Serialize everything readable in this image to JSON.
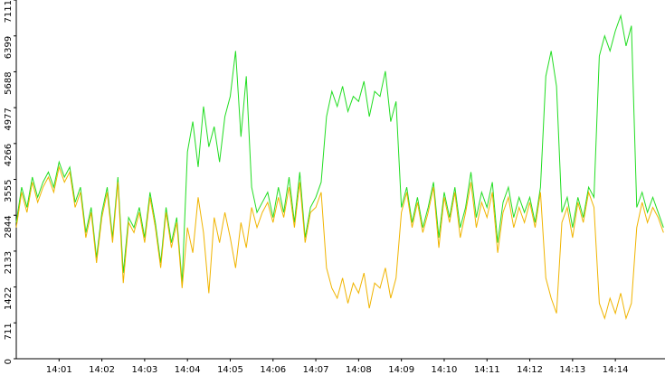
{
  "chart_data": {
    "type": "line",
    "x": [
      840,
      840.125,
      840.25,
      840.375,
      840.5,
      840.625,
      840.75,
      840.875,
      841,
      841.125,
      841.25,
      841.375,
      841.5,
      841.625,
      841.75,
      841.875,
      842,
      842.125,
      842.25,
      842.375,
      842.5,
      842.625,
      842.75,
      842.875,
      843,
      843.125,
      843.25,
      843.375,
      843.5,
      843.625,
      843.75,
      843.875,
      844,
      844.125,
      844.25,
      844.375,
      844.5,
      844.625,
      844.75,
      844.875,
      845,
      845.125,
      845.25,
      845.375,
      845.5,
      845.625,
      845.75,
      845.875,
      846,
      846.125,
      846.25,
      846.375,
      846.5,
      846.625,
      846.75,
      846.875,
      847,
      847.125,
      847.25,
      847.375,
      847.5,
      847.625,
      847.75,
      847.875,
      848,
      848.125,
      848.25,
      848.375,
      848.5,
      848.625,
      848.75,
      848.875,
      849,
      849.125,
      849.25,
      849.375,
      849.5,
      849.625,
      849.75,
      849.875,
      850,
      850.125,
      850.25,
      850.375,
      850.5,
      850.625,
      850.75,
      850.875,
      851,
      851.125,
      851.25,
      851.375,
      851.5,
      851.625,
      851.75,
      851.875,
      852,
      852.125,
      852.25,
      852.375,
      852.5,
      852.625,
      852.75,
      852.875,
      853,
      853.125,
      853.25,
      853.375,
      853.5,
      853.625,
      853.75,
      853.875,
      854,
      854.125,
      854.25,
      854.375,
      854.5,
      854.625,
      854.75,
      854.875,
      855,
      855.125
    ],
    "series": [
      {
        "color": "#22dd22",
        "values": [
          2700,
          3400,
          3000,
          3600,
          3200,
          3500,
          3700,
          3400,
          3900,
          3600,
          3800,
          3100,
          3400,
          2500,
          3000,
          2000,
          2900,
          3400,
          2400,
          3600,
          1700,
          2800,
          2600,
          3000,
          2400,
          3300,
          2700,
          1900,
          3000,
          2300,
          2800,
          1500,
          4100,
          4700,
          3800,
          5000,
          4200,
          4600,
          3900,
          4800,
          5200,
          6100,
          4400,
          5600,
          3400,
          2900,
          3100,
          3300,
          2800,
          3400,
          2900,
          3600,
          2700,
          3700,
          2400,
          3000,
          3200,
          3500,
          4800,
          5300,
          5000,
          5400,
          4900,
          5200,
          5100,
          5500,
          4800,
          5300,
          5200,
          5700,
          4700,
          5100,
          3000,
          3400,
          2700,
          3200,
          2600,
          3000,
          3500,
          2400,
          3300,
          2800,
          3400,
          2600,
          3000,
          3700,
          2800,
          3300,
          3000,
          3500,
          2300,
          3100,
          3400,
          2800,
          3200,
          2900,
          3200,
          2700,
          3400,
          5600,
          6100,
          5400,
          2900,
          3200,
          2600,
          3200,
          2800,
          3400,
          3200,
          6000,
          6400,
          6100,
          6500,
          6800,
          6200,
          6600,
          3000,
          3300,
          2900,
          3200,
          2900,
          2600
        ]
      },
      {
        "color": "#f0b400",
        "values": [
          2600,
          3300,
          2900,
          3500,
          3100,
          3400,
          3600,
          3300,
          3800,
          3500,
          3700,
          3000,
          3300,
          2400,
          2900,
          1900,
          2800,
          3300,
          2300,
          3500,
          1500,
          2700,
          2500,
          2900,
          2300,
          3200,
          2600,
          1800,
          2900,
          2200,
          2700,
          1400,
          2600,
          2100,
          3200,
          2500,
          1300,
          2800,
          2300,
          2900,
          2400,
          1800,
          2700,
          2200,
          3000,
          2600,
          2900,
          3100,
          2700,
          3200,
          2800,
          3400,
          2600,
          3500,
          2300,
          2900,
          3000,
          3300,
          1800,
          1400,
          1200,
          1600,
          1100,
          1500,
          1300,
          1700,
          1000,
          1500,
          1400,
          1800,
          1200,
          1600,
          2900,
          3300,
          2600,
          3100,
          2500,
          2900,
          3400,
          2200,
          3200,
          2700,
          3300,
          2400,
          2900,
          3500,
          2600,
          3100,
          2800,
          3300,
          2100,
          2900,
          3200,
          2600,
          3000,
          2700,
          3100,
          2600,
          3300,
          1600,
          1200,
          900,
          2700,
          3000,
          2400,
          3100,
          2700,
          3300,
          3000,
          1100,
          800,
          1200,
          900,
          1300,
          800,
          1100,
          2600,
          3100,
          2700,
          3000,
          2800,
          2500
        ]
      }
    ],
    "xlim": [
      840,
      855.16
    ],
    "xticks": [
      {
        "value": 841,
        "label": "14:01"
      },
      {
        "value": 842,
        "label": "14:02"
      },
      {
        "value": 843,
        "label": "14:03"
      },
      {
        "value": 844,
        "label": "14:04"
      },
      {
        "value": 845,
        "label": "14:05"
      },
      {
        "value": 846,
        "label": "14:06"
      },
      {
        "value": 847,
        "label": "14:07"
      },
      {
        "value": 848,
        "label": "14:08"
      },
      {
        "value": 849,
        "label": "14:09"
      },
      {
        "value": 850,
        "label": "14:10"
      },
      {
        "value": 851,
        "label": "14:11"
      },
      {
        "value": 852,
        "label": "14:12"
      },
      {
        "value": 853,
        "label": "14:13"
      },
      {
        "value": 854,
        "label": "14:14"
      }
    ],
    "ylim": [
      0,
      7111
    ],
    "yticks": [
      0,
      711,
      1422,
      2133,
      2844,
      3555,
      4266,
      4977,
      5688,
      6399,
      7111
    ]
  }
}
